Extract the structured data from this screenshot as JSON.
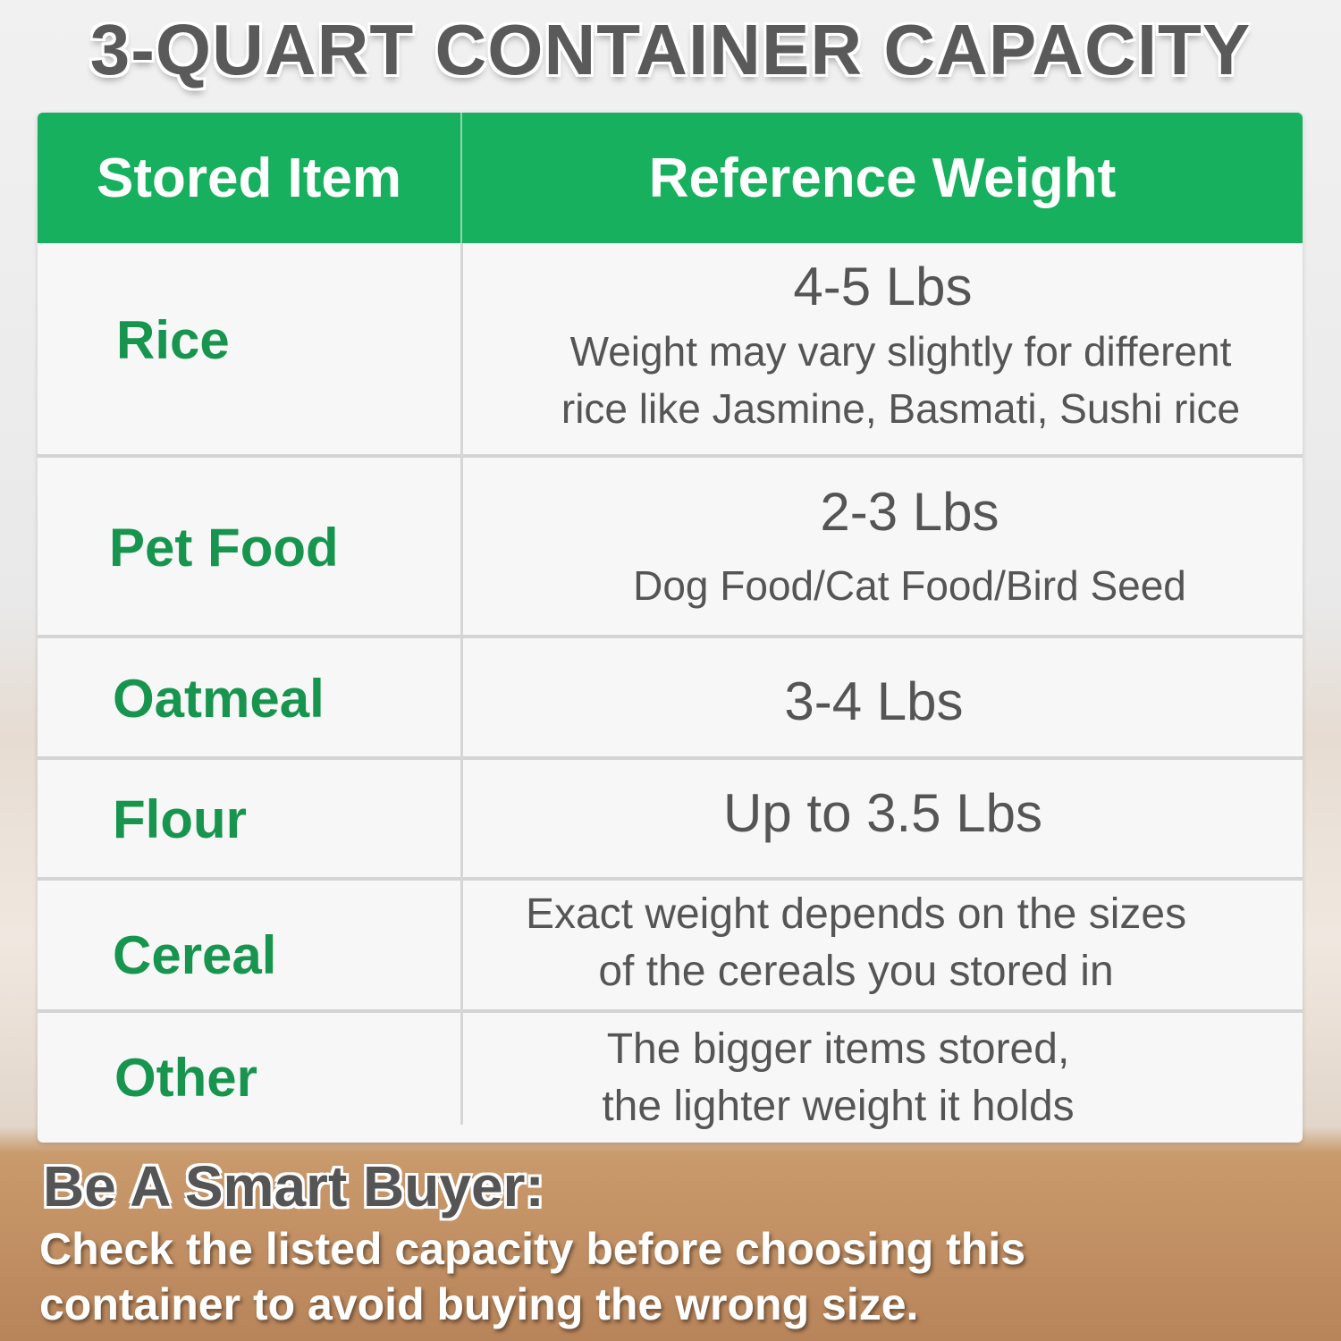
{
  "title": "3-QUART CONTAINER CAPACITY",
  "table": {
    "headers": [
      "Stored Item",
      "Reference Weight"
    ],
    "rows": [
      {
        "item": "Rice",
        "weight": "4-5 Lbs",
        "note": [
          "Weight may vary slightly for different",
          "rice like Jasmine, Basmati, Sushi rice"
        ]
      },
      {
        "item": "Pet Food",
        "weight": "2-3 Lbs",
        "note": [
          "Dog Food/Cat Food/Bird Seed"
        ]
      },
      {
        "item": "Oatmeal",
        "weight": "3-4 Lbs",
        "note": []
      },
      {
        "item": "Flour",
        "weight": "Up to 3.5 Lbs",
        "note": []
      },
      {
        "item": "Cereal",
        "weight": "",
        "note": [
          "Exact weight depends on the sizes",
          "of the cereals you stored in"
        ]
      },
      {
        "item": "Other",
        "weight": "",
        "note": [
          "The bigger items stored,",
          "the lighter weight it holds"
        ]
      }
    ]
  },
  "footer": {
    "heading": "Be A Smart Buyer:",
    "lines": [
      "Check the listed capacity before choosing this",
      "container to avoid buying the wrong size."
    ]
  },
  "colors": {
    "header_green": "#17b05e",
    "item_green": "#17954f"
  }
}
